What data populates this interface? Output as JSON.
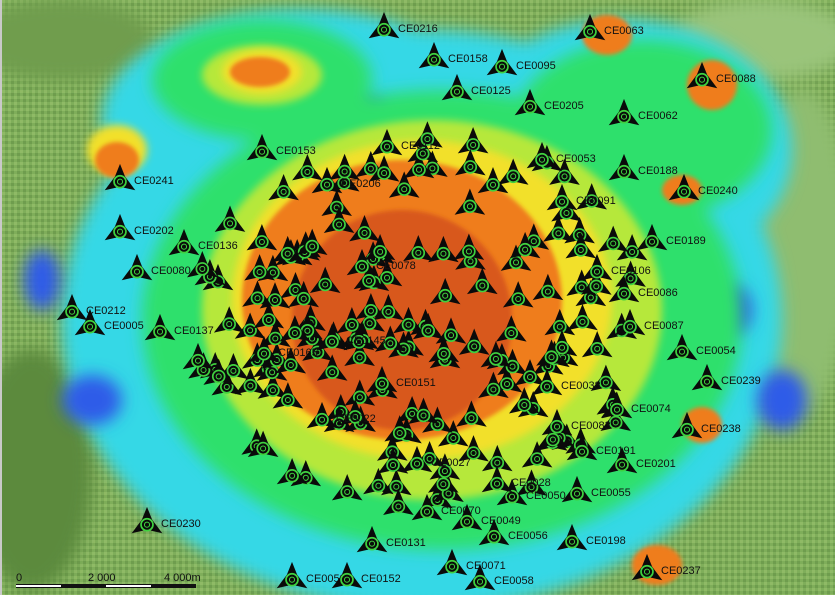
{
  "map": {
    "colors": {
      "terrain": "#7fae5a",
      "cyan": "#35d8e6",
      "green": "#2fe06c",
      "lime": "#b6e83a",
      "yellow": "#f2e02c",
      "orange": "#ef7d1e",
      "blue": "#2f5be8",
      "marker": "#0a0a0a",
      "marker_ring": "#3fd13f"
    },
    "scale_bar": {
      "labels": [
        "0",
        "2 000",
        "4 000m"
      ]
    },
    "markers": [
      {
        "id": "CE0063"
      },
      {
        "id": "CE0088"
      },
      {
        "id": "CE0158"
      },
      {
        "id": "CE0095"
      },
      {
        "id": "CE0205"
      },
      {
        "id": "CE0062"
      },
      {
        "id": "CE0153"
      },
      {
        "id": "CE0112"
      },
      {
        "id": "CE0053"
      },
      {
        "id": "CE0188"
      },
      {
        "id": "CE0241"
      },
      {
        "id": "CE0240"
      },
      {
        "id": "CE0206"
      },
      {
        "id": "CE0091"
      },
      {
        "id": "CE0202"
      },
      {
        "id": "CE0136"
      },
      {
        "id": "CE0189"
      },
      {
        "id": "CE0080"
      },
      {
        "id": "CE0106"
      },
      {
        "id": "CE0086"
      },
      {
        "id": "CE0212"
      },
      {
        "id": "CE0005"
      },
      {
        "id": "CE0137"
      },
      {
        "id": "CE0087"
      },
      {
        "id": "CE0165"
      },
      {
        "id": "CE0054"
      },
      {
        "id": "CE0239"
      },
      {
        "id": "CE0151"
      },
      {
        "id": "CE0038"
      },
      {
        "id": "CE0074"
      },
      {
        "id": "CE0083"
      },
      {
        "id": "CE0238"
      },
      {
        "id": "CE0027"
      },
      {
        "id": "CE0191"
      },
      {
        "id": "CE0201"
      },
      {
        "id": "CE0050"
      },
      {
        "id": "CE0055"
      },
      {
        "id": "CE0070"
      },
      {
        "id": "CE0049"
      },
      {
        "id": "CE0230"
      },
      {
        "id": "CE0056"
      },
      {
        "id": "CE0198"
      },
      {
        "id": "CE0131"
      },
      {
        "id": "CE0071"
      },
      {
        "id": "CE0059"
      },
      {
        "id": "CE0058"
      },
      {
        "id": "CE0237"
      },
      {
        "id": "CE0152"
      },
      {
        "id": "CE0216"
      },
      {
        "id": "CE0125"
      },
      {
        "id": "CE0022"
      },
      {
        "id": "CE0028"
      },
      {
        "id": "CE0145"
      },
      {
        "id": "CE0078"
      }
    ]
  }
}
